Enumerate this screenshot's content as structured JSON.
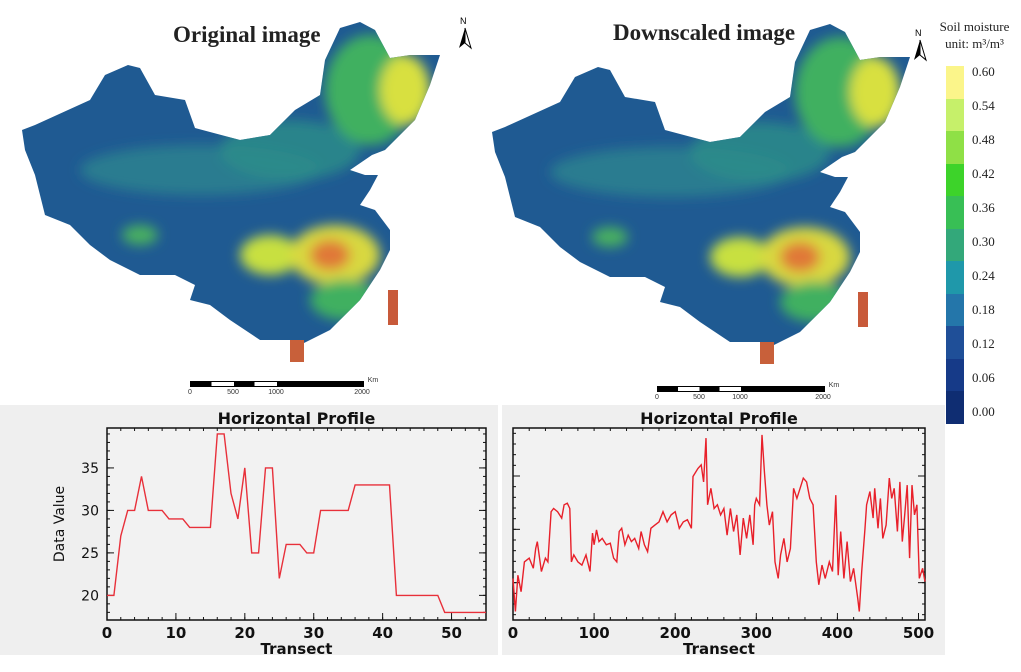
{
  "maps": [
    {
      "title": "Original image",
      "north_label": "N",
      "scale_labels": [
        "0",
        "500",
        "1000",
        "2000"
      ],
      "scale_unit": "Km"
    },
    {
      "title": "Downscaled image",
      "north_label": "N",
      "scale_labels": [
        "0",
        "500",
        "1000",
        "2000"
      ],
      "scale_unit": "Km"
    }
  ],
  "legend": {
    "title_line1": "Soil moisture",
    "title_line2": "unit: m³/m³",
    "labels": [
      "0.60",
      "0.54",
      "0.48",
      "0.42",
      "0.36",
      "0.30",
      "0.24",
      "0.18",
      "0.12",
      "0.06",
      "0.00"
    ],
    "colors": [
      "#fbf58a",
      "#c6f06a",
      "#8fe046",
      "#3dd32a",
      "#38bf55",
      "#33a87a",
      "#1f98aa",
      "#2476aa",
      "#1f4f98",
      "#163a88",
      "#0f2d72"
    ]
  },
  "chart_data": [
    {
      "type": "line",
      "title": "Horizontal Profile",
      "xlabel": "Transect",
      "ylabel": "Data Value",
      "xlim": [
        0,
        55
      ],
      "ylim": [
        17.1,
        39.7
      ],
      "xticks": [
        0,
        10,
        20,
        30,
        40,
        50
      ],
      "yticks": [
        20,
        25,
        30,
        35
      ],
      "grid": false,
      "line_color": "#e8303a",
      "x": [
        0,
        1,
        2,
        3,
        4,
        5,
        6,
        8,
        9,
        11,
        12,
        15,
        16,
        17,
        18,
        19,
        20,
        21,
        22,
        23,
        24,
        25,
        26,
        28,
        29,
        30,
        31,
        35,
        36,
        41,
        42,
        48,
        49,
        55
      ],
      "y": [
        20,
        20,
        27,
        30,
        30,
        34,
        30,
        30,
        29,
        29,
        28,
        28,
        39,
        39,
        32,
        29,
        35,
        25,
        25,
        35,
        35,
        22,
        26,
        26,
        25,
        25,
        30,
        30,
        33,
        33,
        20,
        20,
        18,
        18
      ]
    },
    {
      "type": "line",
      "title": "Horizontal Profile",
      "xlabel": "Transect",
      "ylabel": "",
      "xlim": [
        0,
        508
      ],
      "ylim": [
        0.13,
        0.49
      ],
      "xticks": [
        0,
        100,
        200,
        300,
        400,
        500
      ],
      "yticks": [
        0.2,
        0.3,
        0.4
      ],
      "ytick_labels_shown": false,
      "grid": false,
      "line_color": "#e8202a",
      "x": [
        0,
        3,
        6,
        10,
        14,
        20,
        25,
        28,
        30,
        35,
        40,
        43,
        47,
        50,
        55,
        60,
        63,
        67,
        70,
        72,
        75,
        80,
        85,
        90,
        95,
        98,
        100,
        103,
        106,
        110,
        115,
        120,
        124,
        128,
        131,
        134,
        138,
        142,
        146,
        150,
        155,
        158,
        162,
        166,
        170,
        175,
        180,
        185,
        190,
        195,
        200,
        205,
        210,
        215,
        220,
        222,
        228,
        232,
        235,
        238,
        240,
        244,
        248,
        252,
        256,
        260,
        264,
        268,
        272,
        276,
        280,
        284,
        288,
        292,
        296,
        298,
        300,
        304,
        307,
        310,
        313,
        316,
        320,
        323,
        327,
        330,
        334,
        338,
        342,
        346,
        350,
        354,
        358,
        362,
        366,
        370,
        374,
        377,
        381,
        385,
        390,
        394,
        398,
        401,
        404,
        408,
        412,
        416,
        420,
        425,
        427,
        430,
        434,
        436,
        440,
        444,
        446,
        450,
        453,
        456,
        460,
        464,
        467,
        470,
        474,
        477,
        480,
        483,
        486,
        489,
        492,
        495,
        498,
        501,
        505,
        508
      ],
      "y": [
        0.208,
        0.146,
        0.214,
        0.183,
        0.239,
        0.246,
        0.227,
        0.264,
        0.277,
        0.221,
        0.246,
        0.239,
        0.333,
        0.339,
        0.333,
        0.321,
        0.346,
        0.349,
        0.339,
        0.239,
        0.252,
        0.239,
        0.233,
        0.252,
        0.221,
        0.293,
        0.271,
        0.299,
        0.277,
        0.283,
        0.271,
        0.274,
        0.246,
        0.239,
        0.296,
        0.302,
        0.271,
        0.289,
        0.277,
        0.283,
        0.264,
        0.296,
        0.271,
        0.258,
        0.302,
        0.308,
        0.314,
        0.333,
        0.314,
        0.327,
        0.333,
        0.302,
        0.314,
        0.318,
        0.302,
        0.399,
        0.414,
        0.421,
        0.389,
        0.471,
        0.346,
        0.377,
        0.339,
        0.346,
        0.327,
        0.339,
        0.289,
        0.339,
        0.296,
        0.327,
        0.252,
        0.321,
        0.283,
        0.327,
        0.271,
        0.346,
        0.358,
        0.346,
        0.477,
        0.408,
        0.346,
        0.308,
        0.333,
        0.239,
        0.208,
        0.252,
        0.283,
        0.239,
        0.264,
        0.377,
        0.358,
        0.377,
        0.396,
        0.389,
        0.358,
        0.346,
        0.239,
        0.196,
        0.233,
        0.208,
        0.239,
        0.221,
        0.364,
        0.214,
        0.296,
        0.208,
        0.277,
        0.202,
        0.227,
        0.171,
        0.146,
        0.221,
        0.302,
        0.346,
        0.371,
        0.321,
        0.377,
        0.302,
        0.358,
        0.283,
        0.308,
        0.396,
        0.358,
        0.377,
        0.296,
        0.389,
        0.277,
        0.327,
        0.383,
        0.246,
        0.383,
        0.327,
        0.346,
        0.208,
        0.227,
        0.202
      ]
    }
  ]
}
